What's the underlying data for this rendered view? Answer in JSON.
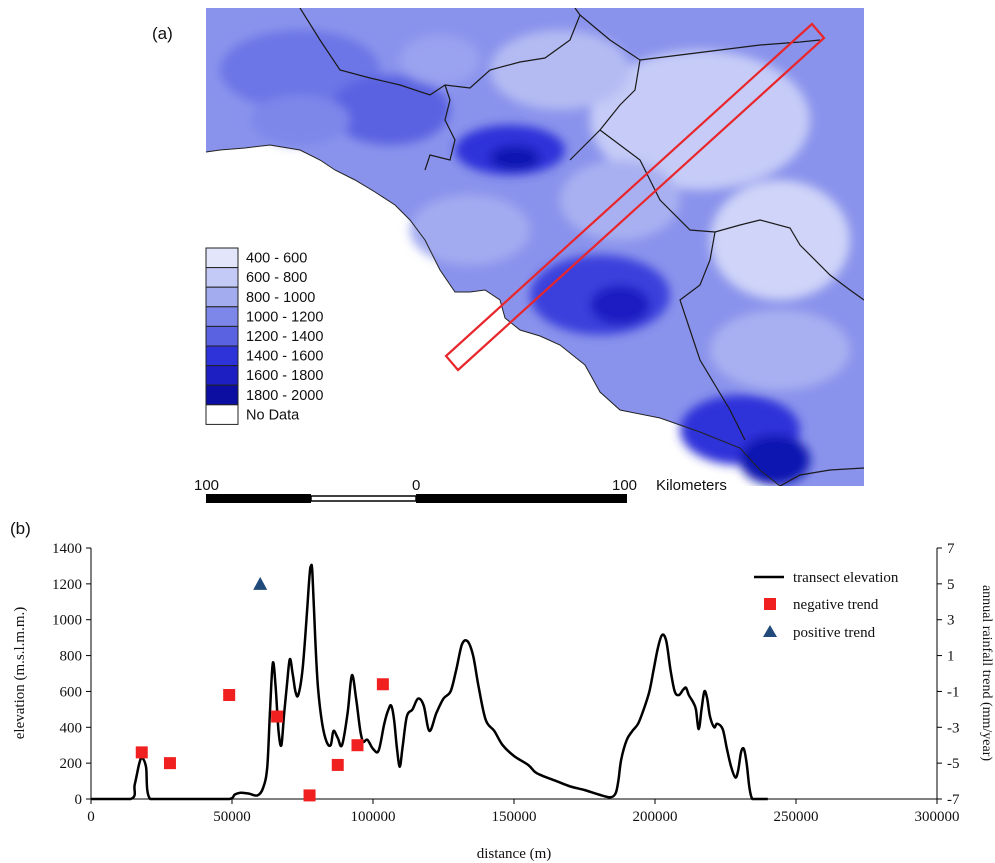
{
  "panel_a": {
    "label": "(a)",
    "legend": [
      {
        "label": "400 - 600",
        "color": "#e3e6fb"
      },
      {
        "label": "600 - 800",
        "color": "#c4caf6"
      },
      {
        "label": "800 - 1000",
        "color": "#a4acf0"
      },
      {
        "label": "1000 - 1200",
        "color": "#7d87ea"
      },
      {
        "label": "1200 - 1400",
        "color": "#5a62e1"
      },
      {
        "label": "1400 - 1600",
        "color": "#2d32d9"
      },
      {
        "label": "1600 - 1800",
        "color": "#1d1fc2"
      },
      {
        "label": "1800 - 2000",
        "color": "#0c0ea1"
      },
      {
        "label": "No Data",
        "color": "#ffffff"
      }
    ],
    "scalebar": {
      "left": "100",
      "mid": "0",
      "right": "100",
      "unit": "Kilometers"
    },
    "colors": {
      "sea": "#ffffff",
      "boundary": "#1a1a1a",
      "transect": "#e8262b"
    }
  },
  "panel_b": {
    "label": "(b)",
    "chart_data": {
      "type": "line",
      "xlabel": "distance (m)",
      "ylabel": "elevation  (m.s.l.m.m.)",
      "y2label": "annual rainfall trend (mm/year)",
      "xlim": [
        0,
        300000
      ],
      "ylim": [
        0,
        1400
      ],
      "y2lim": [
        -7,
        7
      ],
      "xticks": [
        "0",
        "50000",
        "100000",
        "150000",
        "200000",
        "250000",
        "300000"
      ],
      "yticks": [
        "0",
        "200",
        "400",
        "600",
        "800",
        "1000",
        "1200",
        "1400"
      ],
      "y2ticks": [
        "-7",
        "-5",
        "-3",
        "-1",
        "1",
        "3",
        "5",
        "7"
      ],
      "legend_position": "top-right",
      "grid": false,
      "series": [
        {
          "name": "transect elevation",
          "kind": "line",
          "color": "#000000",
          "x": [
            0,
            14000,
            15500,
            17000,
            18000,
            19500,
            21000,
            30000,
            40000,
            49000,
            51000,
            53000,
            56000,
            59000,
            61000,
            62500,
            63500,
            64500,
            65500,
            66500,
            67500,
            68500,
            69500,
            70500,
            71500,
            72500,
            73500,
            75000,
            76500,
            77500,
            78000,
            78500,
            79500,
            80500,
            82000,
            83500,
            85000,
            86000,
            87500,
            89000,
            91000,
            92500,
            94000,
            95500,
            96500,
            98000,
            100000,
            102000,
            104000,
            105500,
            106500,
            107500,
            108500,
            109500,
            110500,
            112000,
            114000,
            116000,
            118000,
            120000,
            122500,
            125000,
            127500,
            129500,
            131500,
            133500,
            135500,
            137500,
            140000,
            143000,
            146000,
            150000,
            155000,
            157500,
            160000,
            165000,
            170000,
            175000,
            180000,
            184000,
            186000,
            187000,
            188000,
            190000,
            192000,
            194000,
            196000,
            198000,
            199500,
            201000,
            202500,
            204000,
            205500,
            207000,
            208500,
            210000,
            211000,
            212000,
            213500,
            214500,
            215500,
            216500,
            217500,
            218500,
            219500,
            221000,
            222000,
            224000,
            225500,
            227000,
            228500,
            229500,
            230500,
            231500,
            232500,
            233500,
            234500,
            236000,
            240000
          ],
          "values": [
            0,
            0,
            80,
            190,
            230,
            180,
            0,
            0,
            0,
            0,
            25,
            35,
            30,
            20,
            60,
            180,
            500,
            760,
            620,
            380,
            300,
            480,
            640,
            780,
            700,
            600,
            580,
            720,
            1020,
            1250,
            1300,
            1260,
            900,
            620,
            420,
            320,
            300,
            380,
            340,
            300,
            480,
            690,
            560,
            380,
            320,
            330,
            280,
            270,
            420,
            500,
            520,
            440,
            280,
            180,
            290,
            460,
            500,
            560,
            520,
            380,
            480,
            560,
            600,
            720,
            860,
            880,
            800,
            620,
            440,
            380,
            300,
            240,
            190,
            150,
            130,
            100,
            70,
            50,
            25,
            10,
            30,
            100,
            220,
            330,
            380,
            420,
            500,
            600,
            720,
            840,
            915,
            880,
            720,
            600,
            580,
            610,
            620,
            580,
            540,
            500,
            390,
            500,
            600,
            560,
            460,
            400,
            420,
            390,
            280,
            180,
            120,
            160,
            260,
            280,
            200,
            60,
            0,
            0,
            0
          ]
        },
        {
          "name": "negative trend",
          "kind": "marker",
          "marker": "square",
          "axis": "right",
          "color": "#f02020",
          "x": [
            18000,
            28000,
            49000,
            66000,
            77500,
            87500,
            94500,
            103500
          ],
          "y": [
            -4.4,
            -5.0,
            -1.2,
            -2.4,
            -6.8,
            -5.1,
            -4.0,
            -0.6
          ]
        },
        {
          "name": "positive trend",
          "kind": "marker",
          "marker": "triangle",
          "axis": "right",
          "color": "#1f4a7a",
          "x": [
            60000
          ],
          "y": [
            5.0
          ]
        }
      ]
    }
  }
}
